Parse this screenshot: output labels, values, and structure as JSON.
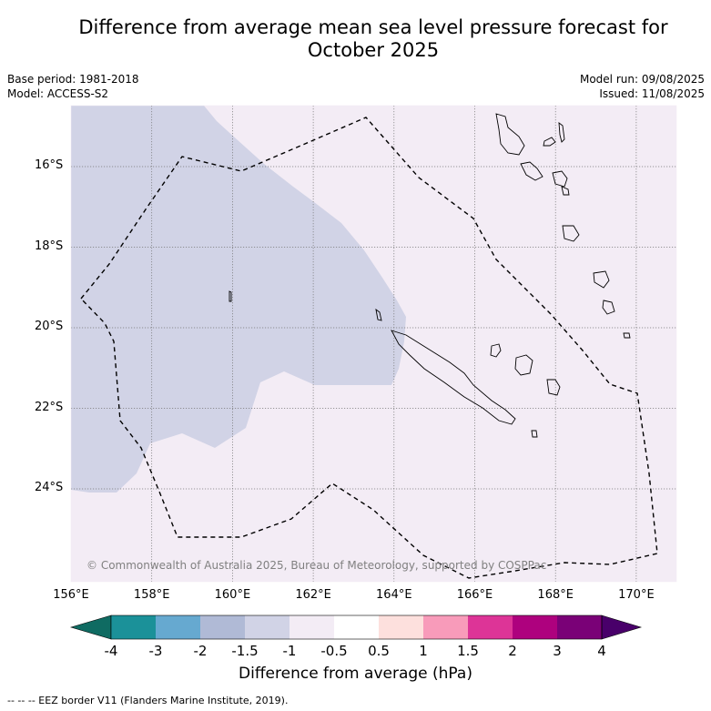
{
  "title_line1": "Difference from average mean sea level pressure forecast for",
  "title_line2": "October 2025",
  "base_period": "Base period: 1981-2018",
  "model": "Model: ACCESS-S2",
  "model_run": "Model run: 09/08/2025",
  "issued": "Issued: 11/08/2025",
  "copyright": "© Commonwealth of Australia 2025, Bureau of Meteorology, supported by COSPPac",
  "footer": "--  --  -- EEZ border V11 (Flanders Marine Institute, 2019).",
  "colorbar": {
    "title": "Difference from average (hPa)",
    "tick_labels": [
      "-4",
      "-3",
      "-2",
      "-1.5",
      "-1",
      "-0.5",
      "0.5",
      "1",
      "1.5",
      "2",
      "3",
      "4"
    ],
    "colors": [
      "#0f6b62",
      "#1b9199",
      "#66a9d0",
      "#b0bad6",
      "#d1d3e6",
      "#f3ecf5",
      "#ffffff",
      "#fde0dd",
      "#f89bba",
      "#dd3497",
      "#ae017e",
      "#7a0177",
      "#49006a"
    ]
  },
  "map": {
    "lon_labels": [
      "156°E",
      "158°E",
      "160°E",
      "162°E",
      "164°E",
      "166°E",
      "168°E",
      "170°E"
    ],
    "lat_labels": [
      "16°S",
      "18°S",
      "20°S",
      "22°S",
      "24°S"
    ],
    "background_color": "#f3ecf5",
    "anomaly_color": "#d1d3e6"
  }
}
